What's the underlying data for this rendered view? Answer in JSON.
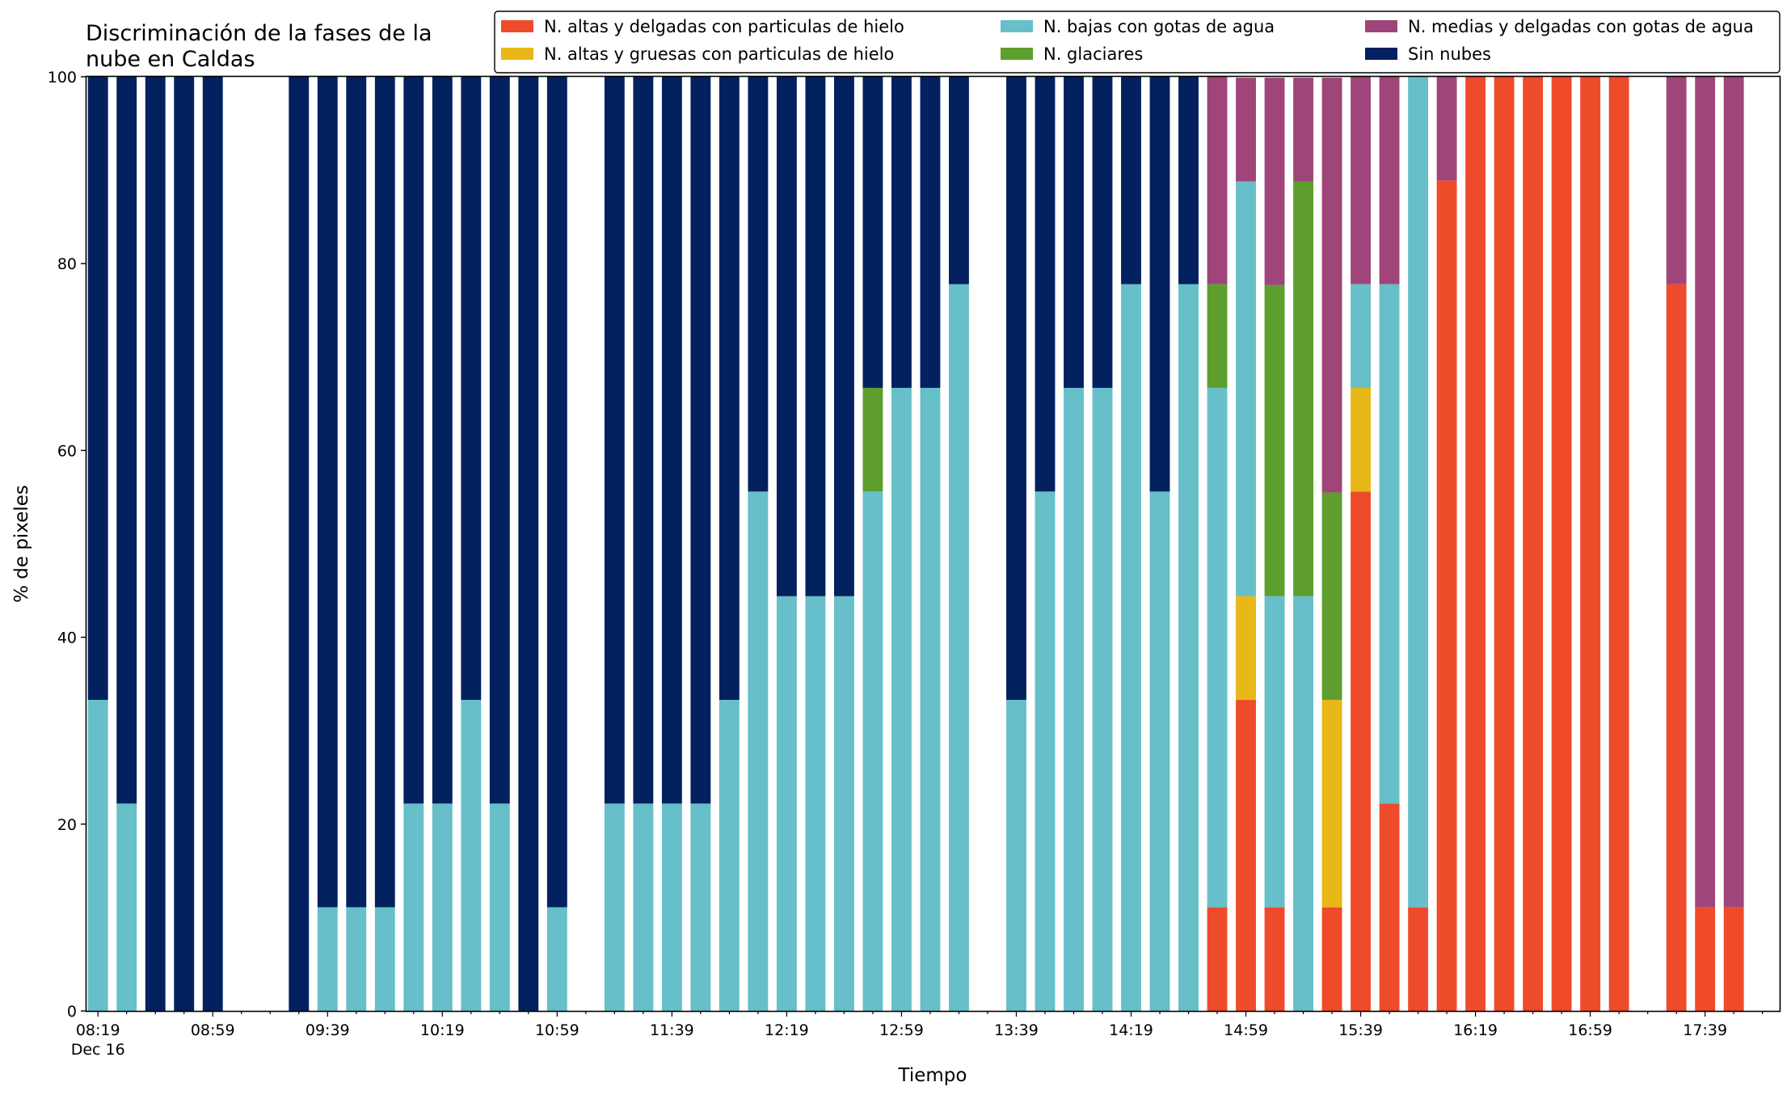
{
  "chart_data": {
    "type": "bar",
    "stacked": true,
    "title_lines": [
      "Discriminación de la fases de la",
      "nube en Caldas"
    ],
    "xlabel": "Tiempo",
    "ylabel": "% de pixeles",
    "ylim": [
      0,
      100
    ],
    "yticks": [
      0,
      20,
      40,
      60,
      80,
      100
    ],
    "xlim": [
      "08:15",
      "18:05"
    ],
    "x_tick_labels": [
      {
        "time": "08:19",
        "label": "08:19",
        "sublabel": "Dec 16"
      },
      {
        "time": "08:59",
        "label": "08:59"
      },
      {
        "time": "09:39",
        "label": "09:39"
      },
      {
        "time": "10:19",
        "label": "10:19"
      },
      {
        "time": "10:59",
        "label": "10:59"
      },
      {
        "time": "11:39",
        "label": "11:39"
      },
      {
        "time": "12:19",
        "label": "12:19"
      },
      {
        "time": "12:59",
        "label": "12:59"
      },
      {
        "time": "13:39",
        "label": "13:39"
      },
      {
        "time": "14:19",
        "label": "14:19"
      },
      {
        "time": "14:59",
        "label": "14:59"
      },
      {
        "time": "15:39",
        "label": "15:39"
      },
      {
        "time": "16:19",
        "label": "16:19"
      },
      {
        "time": "16:59",
        "label": "16:59"
      },
      {
        "time": "17:39",
        "label": "17:39"
      }
    ],
    "legend_position": "top-right",
    "legend_columns": 3,
    "grid": false,
    "series": [
      {
        "key": "altas_delgadas_hielo",
        "name": "N. altas y delgadas con particulas de hielo",
        "color": "#ee4b2b"
      },
      {
        "key": "altas_gruesas_hielo",
        "name": "N. altas y gruesas con particulas de hielo",
        "color": "#e8b718"
      },
      {
        "key": "bajas_agua",
        "name": "N. bajas con gotas de agua",
        "color": "#66bfc9"
      },
      {
        "key": "glaciares",
        "name": "N. glaciares",
        "color": "#5d9e2d"
      },
      {
        "key": "medias_delgadas_agua",
        "name": "N. medias y delgadas con gotas de agua",
        "color": "#a0457a"
      },
      {
        "key": "sin_nubes",
        "name": "Sin nubes",
        "color": "#03205f"
      }
    ],
    "legend_order": [
      "altas_delgadas_hielo",
      "altas_gruesas_hielo",
      "bajas_agua",
      "glaciares",
      "medias_delgadas_agua",
      "sin_nubes"
    ],
    "points": [
      {
        "time": "08:19",
        "values": [
          0,
          0,
          33.3,
          0,
          0,
          66.7
        ]
      },
      {
        "time": "08:29",
        "values": [
          0,
          0,
          22.2,
          0,
          0,
          77.8
        ]
      },
      {
        "time": "08:39",
        "values": [
          0,
          0,
          0,
          0,
          0,
          100
        ]
      },
      {
        "time": "08:49",
        "values": [
          0,
          0,
          0,
          0,
          0,
          100
        ]
      },
      {
        "time": "08:59",
        "values": [
          0,
          0,
          0,
          0,
          0,
          100
        ]
      },
      {
        "time": "09:29",
        "values": [
          0,
          0,
          0,
          0,
          0,
          100
        ]
      },
      {
        "time": "09:39",
        "values": [
          0,
          0,
          11.1,
          0,
          0,
          88.9
        ]
      },
      {
        "time": "09:49",
        "values": [
          0,
          0,
          11.1,
          0,
          0,
          88.9
        ]
      },
      {
        "time": "09:59",
        "values": [
          0,
          0,
          11.1,
          0,
          0,
          88.9
        ]
      },
      {
        "time": "10:09",
        "values": [
          0,
          0,
          22.2,
          0,
          0,
          77.8
        ]
      },
      {
        "time": "10:19",
        "values": [
          0,
          0,
          22.2,
          0,
          0,
          77.8
        ]
      },
      {
        "time": "10:29",
        "values": [
          0,
          0,
          33.3,
          0,
          0,
          66.7
        ]
      },
      {
        "time": "10:39",
        "values": [
          0,
          0,
          22.2,
          0,
          0,
          77.8
        ]
      },
      {
        "time": "10:49",
        "values": [
          0,
          0,
          0,
          0,
          0,
          100
        ]
      },
      {
        "time": "10:59",
        "values": [
          0,
          0,
          11.1,
          0,
          0,
          88.9
        ]
      },
      {
        "time": "11:19",
        "values": [
          0,
          0,
          22.2,
          0,
          0,
          77.8
        ]
      },
      {
        "time": "11:29",
        "values": [
          0,
          0,
          22.2,
          0,
          0,
          77.8
        ]
      },
      {
        "time": "11:39",
        "values": [
          0,
          0,
          22.2,
          0,
          0,
          77.8
        ]
      },
      {
        "time": "11:49",
        "values": [
          0,
          0,
          22.2,
          0,
          0,
          77.8
        ]
      },
      {
        "time": "11:59",
        "values": [
          0,
          0,
          33.3,
          0,
          0,
          66.7
        ]
      },
      {
        "time": "12:09",
        "values": [
          0,
          0,
          55.6,
          0,
          0,
          44.4
        ]
      },
      {
        "time": "12:19",
        "values": [
          0,
          0,
          44.4,
          0,
          0,
          55.6
        ]
      },
      {
        "time": "12:29",
        "values": [
          0,
          0,
          44.4,
          0,
          0,
          55.6
        ]
      },
      {
        "time": "12:39",
        "values": [
          0,
          0,
          44.4,
          0,
          0,
          55.6
        ]
      },
      {
        "time": "12:49",
        "values": [
          0,
          0,
          55.6,
          11.1,
          0,
          33.3
        ]
      },
      {
        "time": "12:59",
        "values": [
          0,
          0,
          66.7,
          0,
          0,
          33.3
        ]
      },
      {
        "time": "13:09",
        "values": [
          0,
          0,
          66.7,
          0,
          0,
          33.3
        ]
      },
      {
        "time": "13:19",
        "values": [
          0,
          0,
          77.8,
          0,
          0,
          22.2
        ]
      },
      {
        "time": "13:39",
        "values": [
          0,
          0,
          33.3,
          0,
          0,
          66.7
        ]
      },
      {
        "time": "13:49",
        "values": [
          0,
          0,
          55.6,
          0,
          0,
          44.4
        ]
      },
      {
        "time": "13:59",
        "values": [
          0,
          0,
          66.7,
          0,
          0,
          33.3
        ]
      },
      {
        "time": "14:09",
        "values": [
          0,
          0,
          66.7,
          0,
          0,
          33.3
        ]
      },
      {
        "time": "14:19",
        "values": [
          0,
          0,
          77.8,
          0,
          0,
          22.2
        ]
      },
      {
        "time": "14:29",
        "values": [
          0,
          0,
          55.6,
          0,
          0,
          44.4
        ]
      },
      {
        "time": "14:39",
        "values": [
          0,
          0,
          77.8,
          0,
          0,
          22.2
        ]
      },
      {
        "time": "14:49",
        "values": [
          11.1,
          0,
          55.6,
          11.1,
          22.2,
          0
        ]
      },
      {
        "time": "14:59",
        "values": [
          33.3,
          11.1,
          44.4,
          0,
          11.1,
          0
        ]
      },
      {
        "time": "15:09",
        "values": [
          11.1,
          0,
          33.3,
          33.3,
          22.2,
          0
        ]
      },
      {
        "time": "15:19",
        "values": [
          0,
          0,
          44.4,
          44.4,
          11.1,
          0
        ]
      },
      {
        "time": "15:29",
        "values": [
          11.1,
          22.2,
          0,
          22.2,
          44.4,
          0
        ]
      },
      {
        "time": "15:39",
        "values": [
          55.6,
          11.1,
          11.1,
          0,
          22.2,
          0
        ]
      },
      {
        "time": "15:49",
        "values": [
          22.2,
          0,
          55.6,
          0,
          22.2,
          0
        ]
      },
      {
        "time": "15:59",
        "values": [
          11.1,
          0,
          88.9,
          0,
          0,
          0
        ]
      },
      {
        "time": "16:09",
        "values": [
          88.9,
          0,
          0,
          0,
          11.1,
          0
        ]
      },
      {
        "time": "16:19",
        "values": [
          100,
          0,
          0,
          0,
          0,
          0
        ]
      },
      {
        "time": "16:29",
        "values": [
          100,
          0,
          0,
          0,
          0,
          0
        ]
      },
      {
        "time": "16:39",
        "values": [
          100,
          0,
          0,
          0,
          0,
          0
        ]
      },
      {
        "time": "16:49",
        "values": [
          100,
          0,
          0,
          0,
          0,
          0
        ]
      },
      {
        "time": "16:59",
        "values": [
          100,
          0,
          0,
          0,
          0,
          0
        ]
      },
      {
        "time": "17:09",
        "values": [
          100,
          0,
          0,
          0,
          0,
          0
        ]
      },
      {
        "time": "17:29",
        "values": [
          77.8,
          0,
          0,
          0,
          22.2,
          0
        ]
      },
      {
        "time": "17:39",
        "values": [
          11.1,
          0,
          0,
          0,
          88.9,
          0
        ]
      },
      {
        "time": "17:49",
        "values": [
          11.1,
          0,
          0,
          0,
          88.9,
          0
        ]
      }
    ]
  }
}
